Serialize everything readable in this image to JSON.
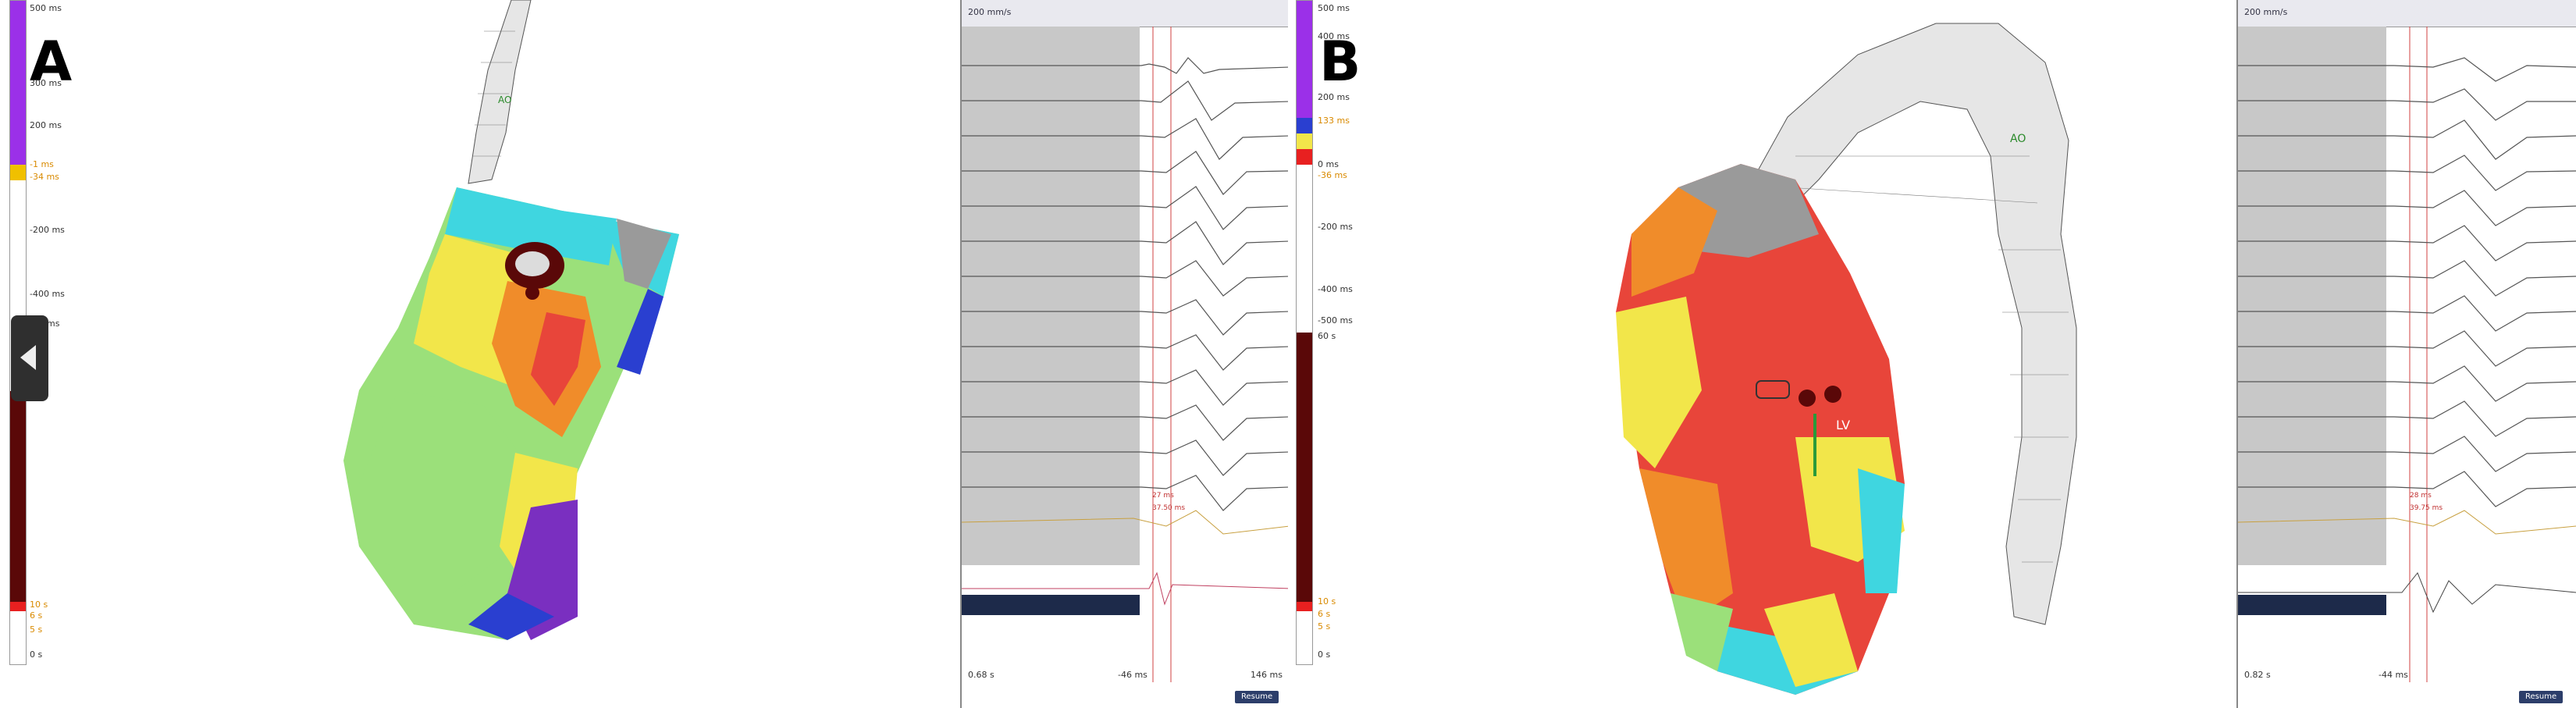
{
  "panel_a": {
    "letter": "A",
    "scale_labels": {
      "top": "500 ms",
      "ms300": "300 ms",
      "ms200": "200 ms",
      "ms0": "-1 ms",
      "ms34": "-34 ms",
      "ms200n": "-200 ms",
      "ms400n": "-400 ms",
      "ms500n": "ms",
      "s10": "10 s",
      "s6": "6 s",
      "s5": "5 s",
      "s0": "0 s"
    },
    "map_label": "AO",
    "toolbar_text": "200 mm/s",
    "annotation_ms": "27 ms",
    "annotation_ms2": "37.50 ms",
    "bottom_left": "0.68 s",
    "bottom_mid": "-46 ms",
    "bottom_right": "146 ms",
    "resume_label": "Resume"
  },
  "panel_b": {
    "letter": "B",
    "scale_labels": {
      "top": "500 ms",
      "ms400": "400 ms",
      "ms200": "200 ms",
      "ms133": "133 ms",
      "ms0": "0 ms",
      "ms36": "-36 ms",
      "ms200n": "-200 ms",
      "ms400n": "-400 ms",
      "ms500n": "-500 ms",
      "s60": "60 s",
      "s10": "10 s",
      "s6": "6 s",
      "s5": "5 s",
      "s0": "0 s"
    },
    "map_label": "AO",
    "lv_label": "LV",
    "toolbar_text": "200 mm/s",
    "annotation_ms": "28 ms",
    "annotation_ms2": "39.75 ms",
    "bottom_left": "0.82 s",
    "bottom_mid": "-44 ms",
    "resume_label": "Resume"
  },
  "colors": {
    "purple": "#9b30e8",
    "darkred": "#5a0808",
    "map_red": "#e8453a",
    "map_orange": "#f08c2a",
    "map_yellow": "#f2e64a",
    "map_green": "#9be07a",
    "map_cyan": "#3fd6e0",
    "map_blue": "#2a3fd0",
    "map_violet": "#7a2fc0",
    "map_grey": "#9a9a9a"
  }
}
